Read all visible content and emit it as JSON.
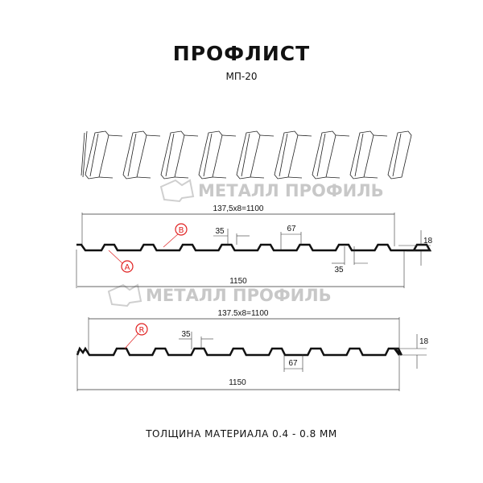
{
  "header": {
    "title": "ПРОФЛИСТ",
    "subtitle": "МП-20"
  },
  "footer": {
    "thickness": "ТОЛЩИНА МАТЕРИАЛА 0.4 - 0.8 ММ"
  },
  "watermark": {
    "text": "МЕТАЛЛ ПРОФИЛЬ"
  },
  "profile_a": {
    "pitch_label": "137,5x8=1100",
    "total_width": "1150",
    "top_width": "35",
    "bottom_width": "35",
    "rib_base": "67",
    "height": "18",
    "marker_a": "A",
    "marker_b": "B"
  },
  "profile_b": {
    "pitch_label": "137.5x8=1100",
    "total_width": "1150",
    "top_width": "35",
    "rib_base": "67",
    "height": "18",
    "marker_r": "R"
  },
  "colors": {
    "marker": "#e02020",
    "line": "#111111",
    "watermark": "#c8c8c8"
  }
}
